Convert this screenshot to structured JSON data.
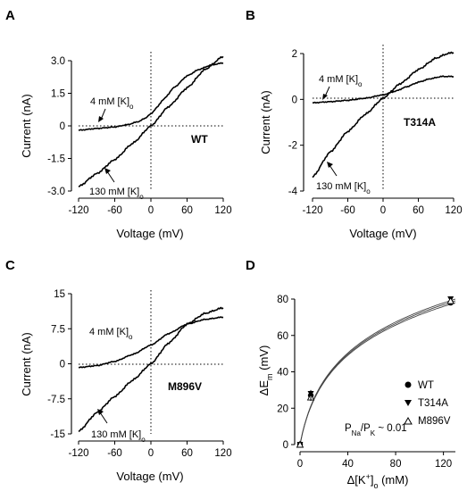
{
  "chart_data": [
    {
      "panel": "A",
      "type": "line",
      "xlabel": "Voltage (mV)",
      "ylabel": "Current (nA)",
      "xlim": [
        -120,
        120
      ],
      "ylim": [
        -3.0,
        3.0
      ],
      "xticks": [
        "-120",
        "-60",
        "0",
        "60",
        "120"
      ],
      "yticks": [
        "-3.0",
        "-1.5",
        "0",
        "1.5",
        "3.0"
      ],
      "tag": "WT",
      "series": [
        {
          "name": "4 mM [K]o",
          "x": [
            -120,
            -90,
            -60,
            -40,
            -20,
            -10,
            0,
            10,
            20,
            40,
            60,
            80,
            100,
            120
          ],
          "y": [
            -0.2,
            -0.12,
            -0.05,
            0.05,
            0.2,
            0.35,
            0.55,
            0.85,
            1.2,
            1.8,
            2.3,
            2.6,
            2.8,
            2.9
          ]
        },
        {
          "name": "130 mM [K]o",
          "x": [
            -120,
            -90,
            -60,
            -30,
            0,
            30,
            60,
            90,
            120
          ],
          "y": [
            -2.8,
            -2.2,
            -1.55,
            -0.8,
            0.0,
            0.9,
            1.75,
            2.6,
            3.2
          ]
        }
      ]
    },
    {
      "panel": "B",
      "type": "line",
      "xlabel": "Voltage (mV)",
      "ylabel": "Current (nA)",
      "xlim": [
        -120,
        120
      ],
      "ylim": [
        -4,
        2
      ],
      "xticks": [
        "-120",
        "-60",
        "0",
        "60",
        "120"
      ],
      "yticks": [
        "-4",
        "-2",
        "0",
        "2"
      ],
      "tag": "T314A",
      "series": [
        {
          "name": "4 mM [K]o",
          "x": [
            -120,
            -90,
            -60,
            -30,
            0,
            20,
            40,
            60,
            80,
            100,
            120
          ],
          "y": [
            -0.15,
            -0.1,
            -0.04,
            0.05,
            0.2,
            0.35,
            0.55,
            0.75,
            0.9,
            1.0,
            1.0
          ]
        },
        {
          "name": "130 mM [K]o",
          "x": [
            -120,
            -90,
            -60,
            -30,
            0,
            30,
            60,
            90,
            110,
            120
          ],
          "y": [
            -3.4,
            -2.3,
            -1.4,
            -0.65,
            0.05,
            0.7,
            1.3,
            1.8,
            2.0,
            2.05
          ]
        }
      ]
    },
    {
      "panel": "C",
      "type": "line",
      "xlabel": "Voltage (mV)",
      "ylabel": "Current (nA)",
      "xlim": [
        -120,
        120
      ],
      "ylim": [
        -15,
        15
      ],
      "xticks": [
        "-120",
        "-60",
        "0",
        "60",
        "120"
      ],
      "yticks": [
        "-15",
        "-7.5",
        "0",
        "7.5",
        "15"
      ],
      "tag": "M896V",
      "series": [
        {
          "name": "4 mM [K]o",
          "x": [
            -120,
            -90,
            -60,
            -30,
            0,
            30,
            60,
            90,
            120
          ],
          "y": [
            -0.8,
            -0.4,
            0.5,
            2.0,
            4.0,
            6.5,
            8.5,
            9.5,
            10.0
          ]
        },
        {
          "name": "130 mM [K]o",
          "x": [
            -120,
            -90,
            -60,
            -30,
            0,
            30,
            60,
            90,
            120
          ],
          "y": [
            -14.5,
            -10.5,
            -7.0,
            -3.5,
            0.0,
            4.5,
            8.5,
            10.8,
            12.0
          ]
        }
      ]
    },
    {
      "panel": "D",
      "type": "scatter",
      "xlabel": "Δ[K⁺]o (mM)",
      "ylabel": "ΔEm (mV)",
      "xlim": [
        0,
        130
      ],
      "ylim": [
        0,
        80
      ],
      "xticks": [
        "0",
        "40",
        "80",
        "120"
      ],
      "yticks": [
        "0",
        "20",
        "40",
        "60",
        "80"
      ],
      "annotation": "PNa/PK ~ 0.01",
      "series": [
        {
          "name": "WT",
          "marker": "filled-circle",
          "x": [
            0,
            9,
            126
          ],
          "y": [
            0,
            27,
            78
          ]
        },
        {
          "name": "T314A",
          "marker": "filled-triangle-down",
          "x": [
            0,
            9,
            126
          ],
          "y": [
            0,
            28,
            80
          ]
        },
        {
          "name": "M896V",
          "marker": "open-triangle-up",
          "x": [
            0,
            9,
            126
          ],
          "y": [
            0,
            26,
            79
          ]
        }
      ]
    }
  ],
  "labels": {
    "panel_A": "A",
    "panel_B": "B",
    "panel_C": "C",
    "panel_D": "D",
    "xlabel_voltage": "Voltage (mV)",
    "ylabel_current": "Current (nA)",
    "ann_4mM_pre": "4 mM [K]",
    "ann_130mM_pre": "130 mM [K]",
    "ann_sub": "o",
    "tag_A": "WT",
    "tag_B": "T314A",
    "tag_C": "M896V",
    "legend_wt": "WT",
    "legend_t314a": "T314A",
    "legend_m896v": "M896V",
    "d_ylabel_pre": "ΔE",
    "d_ylabel_sub": "m",
    "d_ylabel_post": " (mV)",
    "d_xlabel_pre": "Δ[K",
    "d_xlabel_sup": "+",
    "d_xlabel_mid": "]",
    "d_xlabel_sub": "o",
    "d_xlabel_post": " (mM)",
    "d_ann_P1": "P",
    "d_ann_sub1": "Na",
    "d_ann_slash": "/P",
    "d_ann_sub2": "K",
    "d_ann_post": " ~ 0.01"
  }
}
